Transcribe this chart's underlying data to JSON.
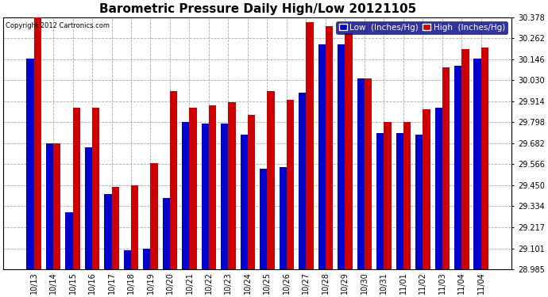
{
  "title": "Barometric Pressure Daily High/Low 20121105",
  "copyright": "Copyright 2012 Cartronics.com",
  "legend_low": "Low  (Inches/Hg)",
  "legend_high": "High  (Inches/Hg)",
  "categories": [
    "10/13",
    "10/14",
    "10/15",
    "10/16",
    "10/17",
    "10/18",
    "10/19",
    "10/20",
    "10/21",
    "10/22",
    "10/23",
    "10/24",
    "10/25",
    "10/26",
    "10/27",
    "10/28",
    "10/29",
    "10/30",
    "10/31",
    "11/01",
    "11/02",
    "11/03",
    "11/04",
    "11/04"
  ],
  "low_values": [
    30.15,
    29.68,
    29.3,
    29.66,
    29.4,
    29.09,
    29.1,
    29.38,
    29.8,
    29.79,
    29.79,
    29.73,
    29.54,
    29.55,
    29.96,
    30.23,
    30.23,
    30.04,
    29.74,
    29.74,
    29.73,
    29.88,
    30.11,
    30.15
  ],
  "high_values": [
    30.38,
    29.68,
    29.88,
    29.88,
    29.44,
    29.45,
    29.57,
    29.97,
    29.88,
    29.89,
    29.91,
    29.84,
    29.97,
    29.92,
    30.35,
    30.33,
    30.29,
    30.04,
    29.8,
    29.8,
    29.87,
    30.1,
    30.2,
    30.21
  ],
  "ylim_min": 28.985,
  "ylim_max": 30.378,
  "yticks": [
    28.985,
    29.101,
    29.217,
    29.334,
    29.45,
    29.566,
    29.682,
    29.798,
    29.914,
    30.03,
    30.146,
    30.262,
    30.378
  ],
  "low_color": "#0000cc",
  "high_color": "#cc0000",
  "bg_color": "#ffffff",
  "grid_color": "#aaaaaa",
  "bar_width": 0.38,
  "title_fontsize": 11,
  "tick_fontsize": 7,
  "legend_fontsize": 7.5
}
